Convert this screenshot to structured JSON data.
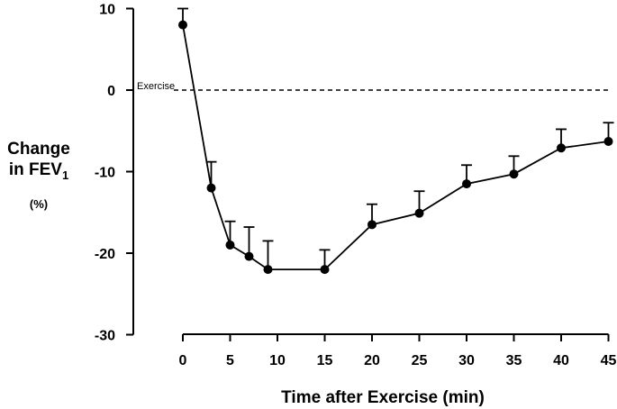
{
  "chart_data": {
    "type": "line",
    "title": "",
    "xlabel": "Time after Exercise (min)",
    "ylabel_line1": "Change",
    "ylabel_line2_main": "in FEV",
    "ylabel_line2_sub": "1",
    "ylabel_units": "(%)",
    "x_ticks": [
      "0",
      "5",
      "10",
      "15",
      "20",
      "25",
      "30",
      "35",
      "40",
      "45"
    ],
    "y_ticks": [
      "10",
      "0",
      "-10",
      "-20",
      "-30"
    ],
    "xlim": [
      0,
      45
    ],
    "ylim": [
      -30,
      10
    ],
    "series": [
      {
        "name": "FEV1 change",
        "x": [
          0,
          3,
          5,
          7,
          9,
          15,
          20,
          25,
          30,
          35,
          40,
          45
        ],
        "y": [
          8,
          -12,
          -19,
          -20.4,
          -22,
          -22,
          -16.5,
          -15.1,
          -11.5,
          -10.3,
          -7.1,
          -6.3
        ],
        "error_upper": [
          2,
          3.2,
          2.9,
          3.6,
          3.5,
          2.4,
          2.5,
          2.7,
          2.3,
          2.2,
          2.3,
          2.3
        ]
      }
    ],
    "reference_line": {
      "y": 0,
      "label": "Exercise",
      "style": "dashed"
    }
  }
}
